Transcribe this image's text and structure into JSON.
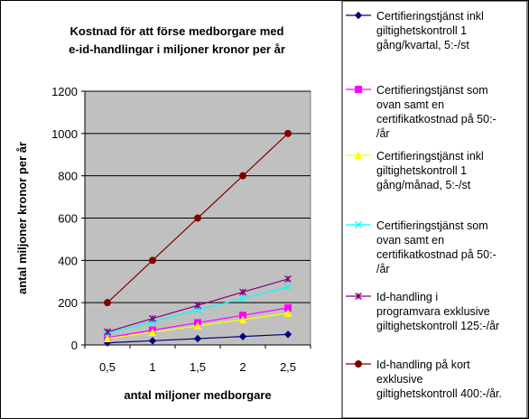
{
  "chart_data": {
    "type": "line",
    "title": [
      "Kostnad för att förse medborgare med",
      "e-id-handlingar i miljoner kronor per år"
    ],
    "xlabel": "antal miljoner medborgare",
    "ylabel": "antal miljoner kronor per år",
    "x": [
      0.5,
      1,
      1.5,
      2,
      2.5
    ],
    "x_tick_labels": [
      "0,5",
      "1",
      "1,5",
      "2",
      "2,5"
    ],
    "ylim": [
      0,
      1200
    ],
    "y_ticks": [
      0,
      200,
      400,
      600,
      800,
      1000,
      1200
    ],
    "grid": "horizontal",
    "legend_position": "right",
    "series": [
      {
        "name": "Certifieringstjänst inkl giltighetskontroll 1 gång/kvartal, 5:-/st",
        "legend_lines": [
          "Certifieringstjänst inkl",
          "giltighetskontroll 1",
          "gång/kvartal, 5:-/st"
        ],
        "values": [
          10,
          20,
          30,
          40,
          50
        ],
        "color": "#000080",
        "marker": "diamond"
      },
      {
        "name": "Certifieringstjänst som ovan samt en certifikatkostnad på 50:-/år",
        "legend_lines": [
          "Certifieringstjänst som",
          "ovan samt en",
          "certifikatkostnad på 50:-",
          "/år"
        ],
        "values": [
          35,
          70,
          105,
          140,
          175
        ],
        "color": "#ff00ff",
        "marker": "square"
      },
      {
        "name": "Certifieringstjänst inkl giltighetskontroll 1 gång/månad, 5:-/st",
        "legend_lines": [
          "Certifieringstjänst inkl",
          "giltighetskontroll 1",
          "gång/månad, 5:-/st"
        ],
        "values": [
          30,
          60,
          90,
          120,
          150
        ],
        "color": "#ffff00",
        "marker": "triangle"
      },
      {
        "name": "Certifieringstjänst som ovan samt en certifikatkostnad på 50:-/år",
        "legend_lines": [
          "Certifieringstjänst som",
          "ovan samt en",
          "certifikatkostnad på 50:-",
          "/år"
        ],
        "values": [
          55,
          110,
          165,
          220,
          275
        ],
        "color": "#00ffff",
        "marker": "x"
      },
      {
        "name": "Id-handling i programvara exklusive giltighetskontroll 125:-/år",
        "legend_lines": [
          "Id-handling i",
          "programvara exklusive",
          "giltighetskontroll 125:-/år"
        ],
        "values": [
          62,
          125,
          187,
          250,
          312
        ],
        "color": "#800080",
        "marker": "star"
      },
      {
        "name": "Id-handling på kort exklusive giltighetskontroll 400:-/år.",
        "legend_lines": [
          "Id-handling på kort",
          "exklusive",
          "giltighetskontroll 400:-/år."
        ],
        "values": [
          200,
          400,
          600,
          800,
          1000
        ],
        "color": "#800000",
        "marker": "circle"
      }
    ]
  }
}
